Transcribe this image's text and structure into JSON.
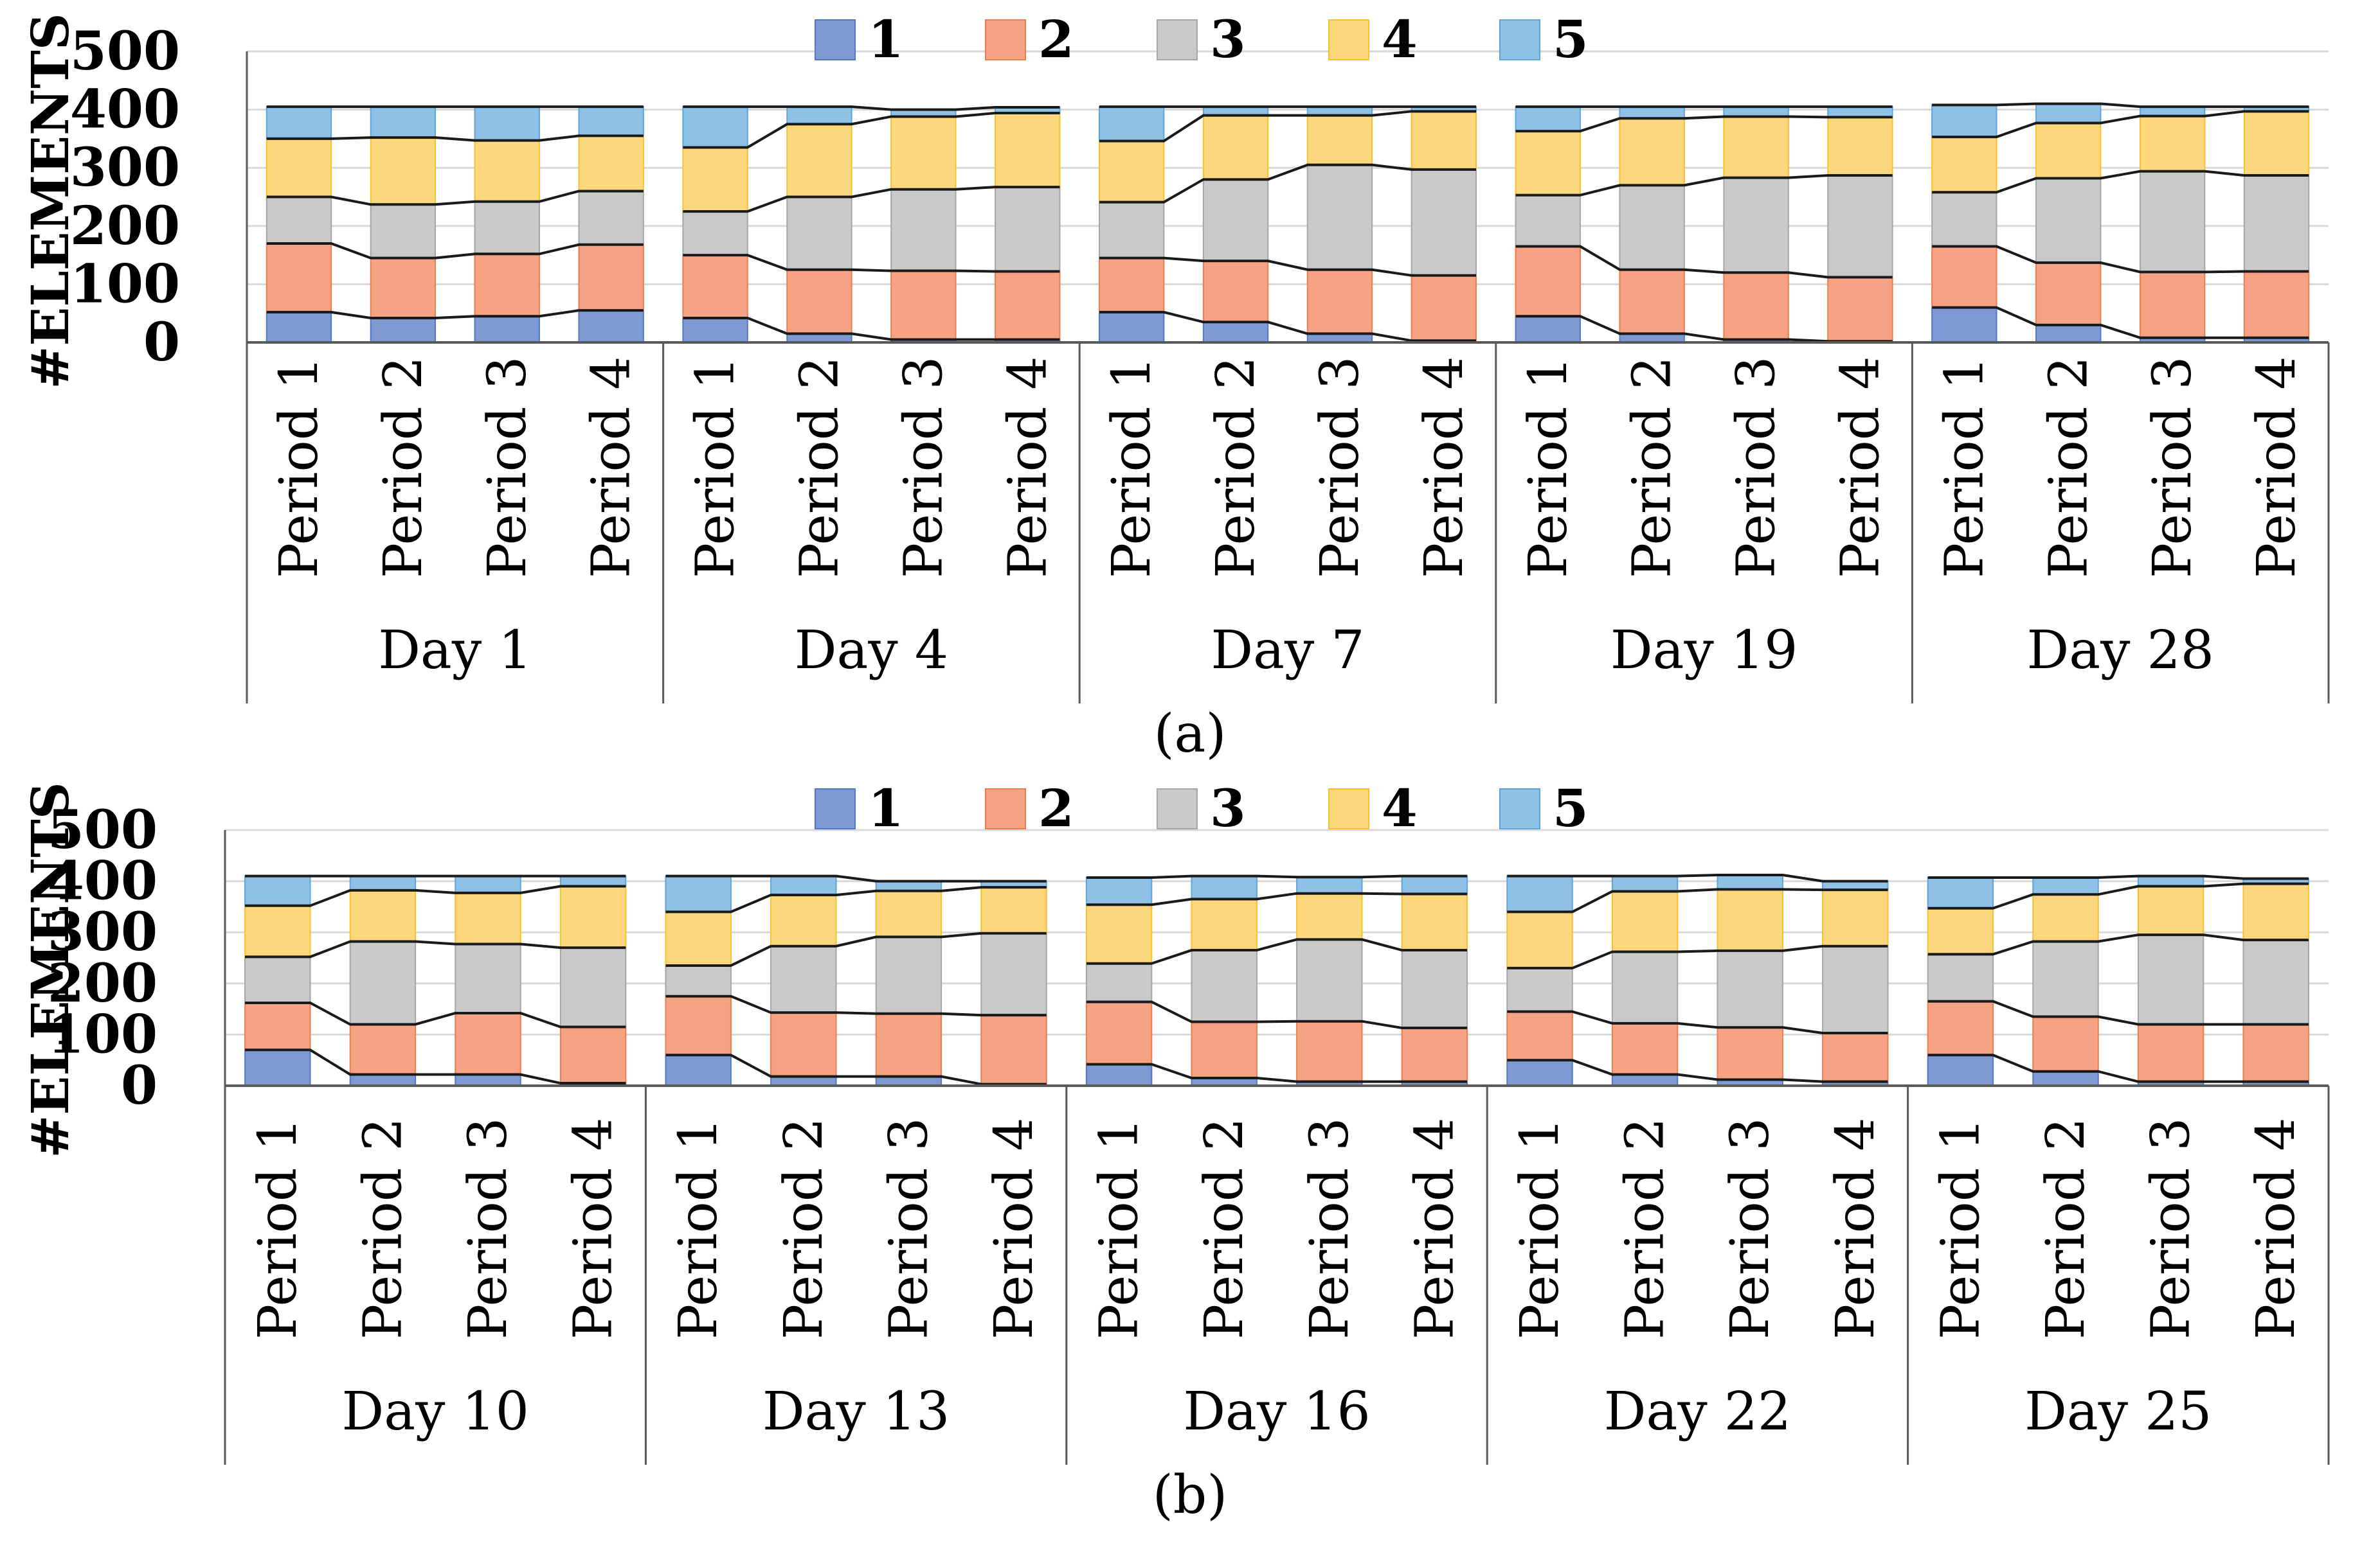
{
  "chart_data": [
    {
      "type": "bar",
      "stacked": true,
      "panel_label": "(a)",
      "ylabel": "#ELEMENTS",
      "ylim": [
        0,
        500
      ],
      "yticks": [
        "0",
        "100",
        "200",
        "300",
        "400",
        "500"
      ],
      "legend": [
        "1",
        "2",
        "3",
        "4",
        "5"
      ],
      "legend_position": "top",
      "groups": [
        {
          "label": "Day 1",
          "categories": [
            "Period 1",
            "Period 2",
            "Period 3",
            "Period 4"
          ]
        },
        {
          "label": "Day 4",
          "categories": [
            "Period 1",
            "Period 2",
            "Period 3",
            "Period 4"
          ]
        },
        {
          "label": "Day 7",
          "categories": [
            "Period 1",
            "Period 2",
            "Period 3",
            "Period 4"
          ]
        },
        {
          "label": "Day 19",
          "categories": [
            "Period 1",
            "Period 2",
            "Period 3",
            "Period 4"
          ]
        },
        {
          "label": "Day 28",
          "categories": [
            "Period 1",
            "Period 2",
            "Period 3",
            "Period 4"
          ]
        }
      ],
      "series": [
        {
          "name": "1",
          "values": [
            52,
            42,
            45,
            55,
            42,
            15,
            5,
            5,
            52,
            35,
            15,
            3,
            45,
            15,
            5,
            2,
            60,
            30,
            8,
            8
          ]
        },
        {
          "name": "2",
          "values": [
            118,
            103,
            107,
            113,
            108,
            110,
            118,
            117,
            93,
            105,
            110,
            112,
            120,
            110,
            115,
            110,
            105,
            107,
            113,
            114
          ]
        },
        {
          "name": "3",
          "values": [
            80,
            92,
            90,
            92,
            75,
            125,
            140,
            145,
            96,
            140,
            180,
            182,
            88,
            145,
            163,
            175,
            93,
            145,
            173,
            165
          ]
        },
        {
          "name": "4",
          "values": [
            100,
            115,
            105,
            95,
            110,
            125,
            125,
            127,
            105,
            110,
            85,
            100,
            110,
            115,
            105,
            100,
            95,
            95,
            95,
            110
          ]
        },
        {
          "name": "5",
          "values": [
            55,
            53,
            58,
            50,
            70,
            30,
            12,
            10,
            59,
            15,
            15,
            8,
            42,
            20,
            17,
            18,
            55,
            33,
            16,
            8
          ]
        }
      ]
    },
    {
      "type": "bar",
      "stacked": true,
      "panel_label": "(b)",
      "ylabel": "#ELEMENTS",
      "ylim": [
        0,
        500
      ],
      "yticks": [
        "0",
        "100",
        "200",
        "300",
        "400",
        "500"
      ],
      "legend": [
        "1",
        "2",
        "3",
        "4",
        "5"
      ],
      "legend_position": "top",
      "groups": [
        {
          "label": "Day 10",
          "categories": [
            "Period 1",
            "Period 2",
            "Period 3",
            "Period 4"
          ]
        },
        {
          "label": "Day 13",
          "categories": [
            "Period 1",
            "Period 2",
            "Period 3",
            "Period 4"
          ]
        },
        {
          "label": "Day 16",
          "categories": [
            "Period 1",
            "Period 2",
            "Period 3",
            "Period 4"
          ]
        },
        {
          "label": "Day 22",
          "categories": [
            "Period 1",
            "Period 2",
            "Period 3",
            "Period 4"
          ]
        },
        {
          "label": "Day 25",
          "categories": [
            "Period 1",
            "Period 2",
            "Period 3",
            "Period 4"
          ]
        }
      ],
      "series": [
        {
          "name": "1",
          "values": [
            70,
            22,
            22,
            5,
            60,
            18,
            18,
            3,
            42,
            15,
            8,
            8,
            50,
            22,
            12,
            8,
            60,
            28,
            8,
            8
          ]
        },
        {
          "name": "2",
          "values": [
            92,
            98,
            120,
            110,
            115,
            125,
            123,
            135,
            122,
            110,
            118,
            105,
            95,
            100,
            102,
            95,
            105,
            107,
            112,
            112
          ]
        },
        {
          "name": "3",
          "values": [
            90,
            162,
            135,
            155,
            60,
            130,
            150,
            160,
            75,
            140,
            160,
            152,
            85,
            140,
            150,
            170,
            92,
            147,
            175,
            165
          ]
        },
        {
          "name": "4",
          "values": [
            100,
            100,
            100,
            120,
            105,
            100,
            90,
            90,
            115,
            100,
            90,
            110,
            110,
            118,
            120,
            110,
            90,
            92,
            95,
            110
          ]
        },
        {
          "name": "5",
          "values": [
            58,
            28,
            33,
            20,
            70,
            37,
            19,
            12,
            53,
            45,
            32,
            35,
            70,
            30,
            28,
            17,
            60,
            33,
            20,
            10
          ]
        }
      ]
    }
  ],
  "colors": {
    "series": [
      "#7f9ad2",
      "#f5a384",
      "#c9c9c9",
      "#fdd77d",
      "#8fc1e6"
    ],
    "series_edge": [
      "#4f79c5",
      "#ee7d4d",
      "#a5a5a5",
      "#f8c02c",
      "#5ea5da"
    ],
    "connector": "#1a1a1a",
    "grid": "#d9d9d9",
    "frame": "#595959"
  }
}
